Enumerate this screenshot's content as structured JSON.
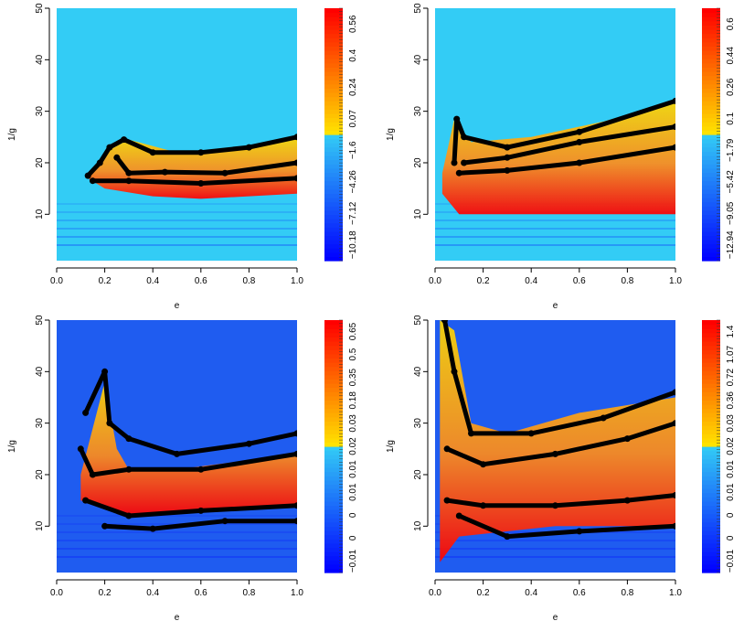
{
  "chart_data": [
    {
      "type": "heatmap",
      "xlabel": "e",
      "ylabel": "1/g",
      "xlim": [
        0,
        1
      ],
      "ylim": [
        1,
        50
      ],
      "xticks": [
        "0.0",
        "0.2",
        "0.4",
        "0.6",
        "0.8",
        "1.0"
      ],
      "yticks": [
        "10",
        "20",
        "30",
        "40",
        "50"
      ],
      "colorbar_labels": [
        "−10.18",
        "−7.12",
        "−4.26",
        "−1.6",
        "0.07",
        "0.24",
        "0.4",
        "0.56"
      ],
      "colors": {
        "background": "#33ccf5",
        "low": "#0000ff",
        "mid": "#ffd700",
        "high": "#ff0000"
      },
      "region": [
        [
          0.13,
          17.5
        ],
        [
          0.2,
          22
        ],
        [
          0.3,
          24.5
        ],
        [
          0.5,
          22
        ],
        [
          0.75,
          23
        ],
        [
          1.0,
          25
        ],
        [
          1.0,
          14
        ],
        [
          0.6,
          13
        ],
        [
          0.4,
          13.5
        ],
        [
          0.2,
          15
        ],
        [
          0.13,
          17
        ]
      ],
      "contours": [
        [
          [
            0.13,
            17.5
          ],
          [
            0.18,
            20
          ],
          [
            0.22,
            23
          ],
          [
            0.28,
            24.5
          ],
          [
            0.4,
            22
          ],
          [
            0.6,
            22
          ],
          [
            0.8,
            23
          ],
          [
            1.0,
            25
          ]
        ],
        [
          [
            0.25,
            21
          ],
          [
            0.3,
            18
          ],
          [
            0.45,
            18.2
          ],
          [
            0.7,
            18
          ],
          [
            1.0,
            20
          ]
        ],
        [
          [
            0.15,
            16.5
          ],
          [
            0.3,
            16.5
          ],
          [
            0.6,
            16
          ],
          [
            1.0,
            17
          ]
        ]
      ]
    },
    {
      "type": "heatmap",
      "xlabel": "e",
      "ylabel": "1/g",
      "xlim": [
        0,
        1
      ],
      "ylim": [
        1,
        50
      ],
      "xticks": [
        "0.0",
        "0.2",
        "0.4",
        "0.6",
        "0.8",
        "1.0"
      ],
      "yticks": [
        "10",
        "20",
        "30",
        "40",
        "50"
      ],
      "colorbar_labels": [
        "−12.94",
        "−9.05",
        "−5.42",
        "−1.79",
        "0.1",
        "0.26",
        "0.44",
        "0.6"
      ],
      "colors": {
        "background": "#33ccf5",
        "low": "#0000ff",
        "mid": "#ffd700",
        "high": "#ff0000"
      },
      "region": [
        [
          0.03,
          18
        ],
        [
          0.08,
          28.5
        ],
        [
          0.15,
          24
        ],
        [
          0.4,
          25
        ],
        [
          0.7,
          28
        ],
        [
          1.0,
          32
        ],
        [
          1.0,
          10
        ],
        [
          0.5,
          10
        ],
        [
          0.1,
          10
        ],
        [
          0.03,
          14
        ]
      ],
      "contours": [
        [
          [
            0.08,
            20
          ],
          [
            0.09,
            28.5
          ],
          [
            0.12,
            25
          ],
          [
            0.3,
            23
          ],
          [
            0.6,
            26
          ],
          [
            1.0,
            32
          ]
        ],
        [
          [
            0.12,
            20
          ],
          [
            0.3,
            21
          ],
          [
            0.6,
            24
          ],
          [
            1.0,
            27
          ]
        ],
        [
          [
            0.1,
            18
          ],
          [
            0.3,
            18.5
          ],
          [
            0.6,
            20
          ],
          [
            1.0,
            23
          ]
        ]
      ]
    },
    {
      "type": "heatmap",
      "xlabel": "e",
      "ylabel": "1/g",
      "xlim": [
        0,
        1
      ],
      "ylim": [
        1,
        50
      ],
      "xticks": [
        "0.0",
        "0.2",
        "0.4",
        "0.6",
        "0.8",
        "1.0"
      ],
      "yticks": [
        "10",
        "20",
        "30",
        "40",
        "50"
      ],
      "colorbar_labels": [
        "−0.01",
        "0",
        "0",
        "0.01",
        "0.01",
        "0.02",
        "0.03",
        "0.18",
        "0.35",
        "0.5",
        "0.65"
      ],
      "colors": {
        "background": "#1f5cf0",
        "low": "#0000ff",
        "mid": "#ffd700",
        "high": "#ff0000"
      },
      "region": [
        [
          0.1,
          20
        ],
        [
          0.2,
          38
        ],
        [
          0.25,
          25
        ],
        [
          0.3,
          21
        ],
        [
          0.5,
          21
        ],
        [
          1.0,
          24
        ],
        [
          1.0,
          14
        ],
        [
          0.5,
          13
        ],
        [
          0.3,
          12
        ],
        [
          0.1,
          15
        ]
      ],
      "contours": [
        [
          [
            0.12,
            32
          ],
          [
            0.2,
            40
          ],
          [
            0.22,
            30
          ],
          [
            0.3,
            27
          ],
          [
            0.5,
            24
          ],
          [
            0.8,
            26
          ],
          [
            1.0,
            28
          ]
        ],
        [
          [
            0.1,
            25
          ],
          [
            0.15,
            20
          ],
          [
            0.3,
            21
          ],
          [
            0.6,
            21
          ],
          [
            1.0,
            24
          ]
        ],
        [
          [
            0.12,
            15
          ],
          [
            0.3,
            12
          ],
          [
            0.6,
            13
          ],
          [
            1.0,
            14
          ]
        ],
        [
          [
            0.2,
            10
          ],
          [
            0.4,
            9.5
          ],
          [
            0.7,
            11
          ],
          [
            1.0,
            11
          ]
        ]
      ]
    },
    {
      "type": "heatmap",
      "xlabel": "e",
      "ylabel": "1/g",
      "xlim": [
        0,
        1
      ],
      "ylim": [
        1,
        50
      ],
      "xticks": [
        "0.0",
        "0.2",
        "0.4",
        "0.6",
        "0.8",
        "1.0"
      ],
      "yticks": [
        "10",
        "20",
        "30",
        "40",
        "50"
      ],
      "colorbar_labels": [
        "−0.01",
        "0",
        "0",
        "0.01",
        "0.01",
        "0.02",
        "0.03",
        "0.36",
        "0.72",
        "1.07",
        "1.4"
      ],
      "colors": {
        "background": "#1f5cf0",
        "low": "#0000ff",
        "mid": "#ffd700",
        "high": "#ff0000"
      },
      "region": [
        [
          0.02,
          50
        ],
        [
          0.08,
          48
        ],
        [
          0.15,
          30
        ],
        [
          0.3,
          28
        ],
        [
          0.6,
          32
        ],
        [
          1.0,
          35
        ],
        [
          1.0,
          10
        ],
        [
          0.5,
          10
        ],
        [
          0.1,
          8
        ],
        [
          0.02,
          3
        ]
      ],
      "contours": [
        [
          [
            0.04,
            50
          ],
          [
            0.08,
            40
          ],
          [
            0.15,
            28
          ],
          [
            0.4,
            28
          ],
          [
            0.7,
            31
          ],
          [
            1.0,
            36
          ]
        ],
        [
          [
            0.05,
            25
          ],
          [
            0.2,
            22
          ],
          [
            0.5,
            24
          ],
          [
            0.8,
            27
          ],
          [
            1.0,
            30
          ]
        ],
        [
          [
            0.05,
            15
          ],
          [
            0.2,
            14
          ],
          [
            0.5,
            14
          ],
          [
            0.8,
            15
          ],
          [
            1.0,
            16
          ]
        ],
        [
          [
            0.1,
            12
          ],
          [
            0.3,
            8
          ],
          [
            0.6,
            9
          ],
          [
            1.0,
            10
          ]
        ]
      ]
    }
  ]
}
